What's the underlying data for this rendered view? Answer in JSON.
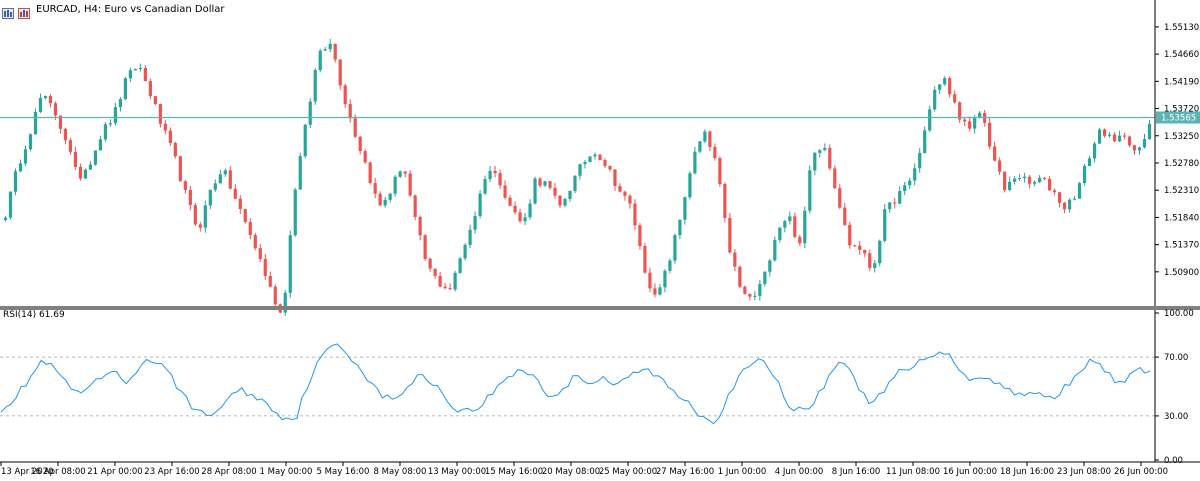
{
  "window": {
    "symbol": "EURCAD",
    "timeframe": "H4",
    "title": "EURCAD, H4:  Euro vs Canadian Dollar"
  },
  "horizontal_line": {
    "price": 1.53565,
    "label": "1.53565",
    "color": "#5bb5b5"
  },
  "colors": {
    "bull": "#26a69a",
    "bear": "#ef5350",
    "rsi_line": "#2196f3",
    "grid": "#9e9e9e",
    "separator": "#808080"
  },
  "price_axis": {
    "ticks": [
      "1.55130",
      "1.54660",
      "1.54190",
      "1.53720",
      "1.53250",
      "1.52780",
      "1.52310",
      "1.51840",
      "1.51370",
      "1.50900"
    ],
    "ylim": [
      1.5031,
      1.5556
    ]
  },
  "indicator": {
    "label": "RSI(14) 61.69",
    "name": "RSI(14)",
    "value": "61.69",
    "ticks": [
      "100.00",
      "70.00",
      "30.00",
      "0.00"
    ],
    "levels": [
      70,
      30
    ],
    "ylim": [
      0,
      100
    ]
  },
  "time_axis": {
    "labels": [
      "13 Apr 2020",
      "16 Apr 08:00",
      "21 Apr 00:00",
      "23 Apr 16:00",
      "28 Apr 08:00",
      "1 May 00:00",
      "5 May 16:00",
      "8 May 08:00",
      "13 May 00:00",
      "15 May 16:00",
      "20 May 08:00",
      "25 May 00:00",
      "27 May 16:00",
      "1 Jun 00:00",
      "4 Jun 00:00",
      "8 Jun 16:00",
      "11 Jun 08:00",
      "16 Jun 00:00",
      "18 Jun 16:00",
      "23 Jun 08:00",
      "26 Jun 00:00"
    ]
  },
  "chart_data": {
    "type": "candlestick",
    "title": "EURCAD, H4:  Euro vs Canadian Dollar",
    "series": [
      {
        "name": "EURCAD",
        "close_path": [
          1.519,
          1.527,
          1.533,
          1.5395,
          1.537,
          1.532,
          1.525,
          1.528,
          1.533,
          1.536,
          1.542,
          1.545,
          1.54,
          1.534,
          1.529,
          1.522,
          1.516,
          1.523,
          1.527,
          1.522,
          1.517,
          1.512,
          1.506,
          1.501,
          1.523,
          1.535,
          1.547,
          1.549,
          1.54,
          1.533,
          1.527,
          1.52,
          1.523,
          1.528,
          1.518,
          1.51,
          1.507,
          1.506,
          1.513,
          1.519,
          1.527,
          1.525,
          1.52,
          1.517,
          1.525,
          1.524,
          1.52,
          1.524,
          1.528,
          1.53,
          1.527,
          1.523,
          1.52,
          1.51,
          1.504,
          1.51,
          1.518,
          1.528,
          1.533,
          1.528,
          1.514,
          1.506,
          1.504,
          1.508,
          1.516,
          1.519,
          1.513,
          1.53,
          1.531,
          1.523,
          1.514,
          1.513,
          1.509,
          1.519,
          1.522,
          1.524,
          1.53,
          1.54,
          1.542,
          1.537,
          1.533,
          1.537,
          1.529,
          1.523,
          1.526,
          1.524,
          1.525,
          1.523,
          1.52,
          1.523,
          1.529,
          1.534,
          1.531,
          1.533,
          1.529,
          1.534
        ]
      },
      {
        "name": "RSI(14)",
        "values": [
          35,
          42,
          55,
          68,
          60,
          48,
          45,
          55,
          60,
          52,
          66,
          68,
          58,
          45,
          32,
          30,
          40,
          48,
          44,
          38,
          30,
          27,
          55,
          72,
          79,
          70,
          58,
          45,
          40,
          50,
          58,
          52,
          38,
          33,
          35,
          45,
          55,
          62,
          58,
          44,
          45,
          60,
          52,
          56,
          50,
          58,
          62,
          56,
          46,
          40,
          30,
          26,
          46,
          60,
          68,
          62,
          40,
          33,
          38,
          56,
          70,
          52,
          40,
          45,
          60,
          62,
          70,
          75,
          68,
          55,
          58,
          52,
          48,
          44,
          45,
          42,
          50,
          62,
          68,
          58,
          52,
          60,
          62
        ]
      }
    ]
  }
}
